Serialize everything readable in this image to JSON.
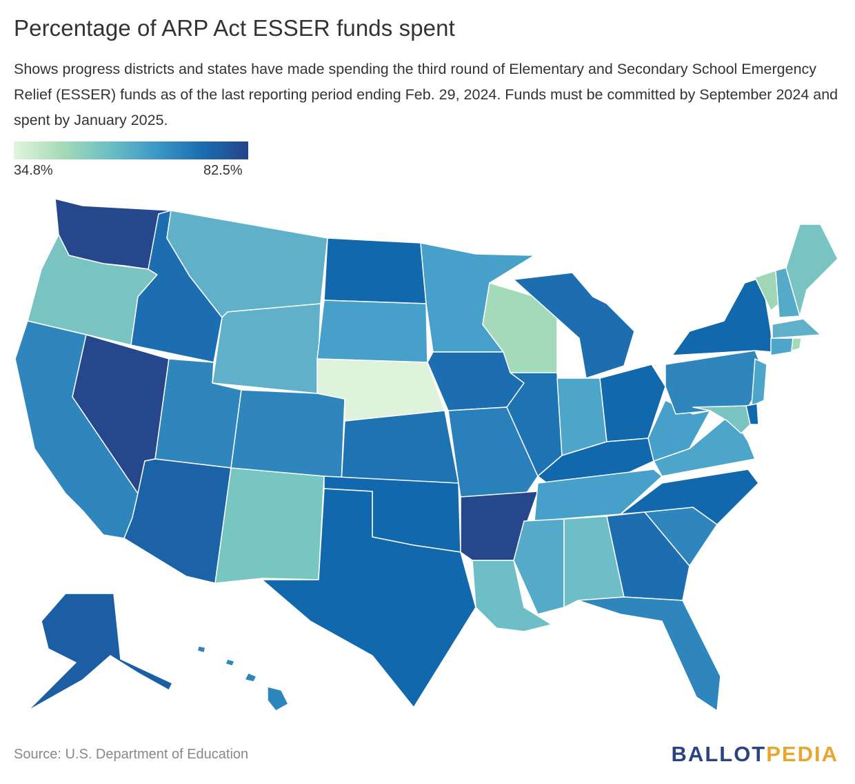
{
  "title": "Percentage of ARP Act ESSER funds spent",
  "subtitle": "Shows progress districts and states have made spending the third round of Elementary and Secondary School Emergency Relief (ESSER) funds as of the last reporting period ending Feb. 29, 2024. Funds must be committed by September 2024 and spent by January 2025.",
  "legend": {
    "min_label": "34.8%",
    "max_label": "82.5%",
    "colors": [
      "#e2f4dd",
      "#a8dbb8",
      "#6ec0c5",
      "#3d9ac6",
      "#1a6fb0",
      "#26438a"
    ]
  },
  "source": "Source: U.S. Department of Education",
  "brand": {
    "part1": "BALLOT",
    "part2": "PEDIA"
  },
  "chart_data": {
    "type": "choropleth",
    "scale": {
      "min": 34.8,
      "max": 82.5
    },
    "states": [
      {
        "code": "WA",
        "color": "#26478b"
      },
      {
        "code": "OR",
        "color": "#79c3c3"
      },
      {
        "code": "CA",
        "color": "#2f86bd"
      },
      {
        "code": "NV",
        "color": "#26478b"
      },
      {
        "code": "ID",
        "color": "#1c6eb0"
      },
      {
        "code": "MT",
        "color": "#5fb0c8"
      },
      {
        "code": "WY",
        "color": "#5fb0c8"
      },
      {
        "code": "UT",
        "color": "#2f86bd"
      },
      {
        "code": "AZ",
        "color": "#1c62a6"
      },
      {
        "code": "CO",
        "color": "#2f86bd"
      },
      {
        "code": "NM",
        "color": "#78c6c2"
      },
      {
        "code": "ND",
        "color": "#1268ad"
      },
      {
        "code": "SD",
        "color": "#47a0c9"
      },
      {
        "code": "NE",
        "color": "#dff2dc"
      },
      {
        "code": "KS",
        "color": "#1e73b3"
      },
      {
        "code": "OK",
        "color": "#1268ad"
      },
      {
        "code": "TX",
        "color": "#1268ad"
      },
      {
        "code": "MN",
        "color": "#47a0c9"
      },
      {
        "code": "IA",
        "color": "#1c6eb0"
      },
      {
        "code": "MO",
        "color": "#2a80bb"
      },
      {
        "code": "AR",
        "color": "#26478b"
      },
      {
        "code": "LA",
        "color": "#6dbec7"
      },
      {
        "code": "WI",
        "color": "#a3dbba"
      },
      {
        "code": "IL",
        "color": "#1e73b3"
      },
      {
        "code": "MI",
        "color": "#1c6eb0"
      },
      {
        "code": "IN",
        "color": "#4ea5ca"
      },
      {
        "code": "OH",
        "color": "#1268ad"
      },
      {
        "code": "KY",
        "color": "#1268ad"
      },
      {
        "code": "TN",
        "color": "#47a0c9"
      },
      {
        "code": "MS",
        "color": "#55aac9"
      },
      {
        "code": "AL",
        "color": "#6dbec7"
      },
      {
        "code": "GA",
        "color": "#1c6eb0"
      },
      {
        "code": "FL",
        "color": "#2f86bd"
      },
      {
        "code": "SC",
        "color": "#2f86bd"
      },
      {
        "code": "NC",
        "color": "#1268ad"
      },
      {
        "code": "VA",
        "color": "#4ea5ca"
      },
      {
        "code": "WV",
        "color": "#47a0c9"
      },
      {
        "code": "PA",
        "color": "#2f86bd"
      },
      {
        "code": "NY",
        "color": "#1268ad"
      },
      {
        "code": "VT",
        "color": "#9fd7b6"
      },
      {
        "code": "NH",
        "color": "#55aac9"
      },
      {
        "code": "ME",
        "color": "#79c3c3"
      },
      {
        "code": "MA",
        "color": "#5fb0c8"
      },
      {
        "code": "CT",
        "color": "#4ea5ca"
      },
      {
        "code": "RI",
        "color": "#a3dbba"
      },
      {
        "code": "NJ",
        "color": "#4ea5ca"
      },
      {
        "code": "DE",
        "color": "#1268ad"
      },
      {
        "code": "MD",
        "color": "#79c3c3"
      },
      {
        "code": "AK",
        "color": "#1c5ea3"
      },
      {
        "code": "HI",
        "color": "#2f86bd"
      }
    ]
  }
}
